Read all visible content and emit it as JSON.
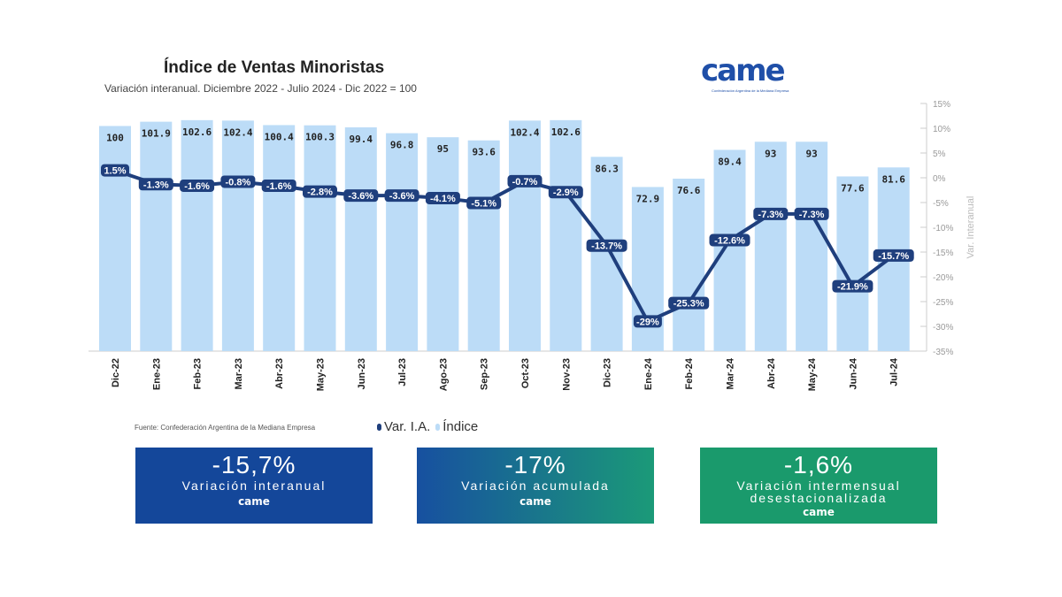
{
  "header": {
    "title": "Índice de Ventas Minoristas",
    "subtitle": "Variación interanual. Diciembre 2022 - Julio 2024 - Dic 2022 = 100",
    "logo_text": "came",
    "logo_subtext": "Confederación Argentina de la Mediana Empresa"
  },
  "chart_data": {
    "type": "bar+line",
    "title": "Índice de Ventas Minoristas",
    "categories": [
      "Dic-22",
      "Ene-23",
      "Feb-23",
      "Mar-23",
      "Abr-23",
      "May-23",
      "Jun-23",
      "Jul-23",
      "Ago-23",
      "Sep-23",
      "Oct-23",
      "Nov-23",
      "Dic-23",
      "Ene-24",
      "Feb-24",
      "Mar-24",
      "Abr-24",
      "May-24",
      "Jun-24",
      "Jul-24"
    ],
    "series": [
      {
        "name": "Índice",
        "type": "bar",
        "color": "#bcdcf7",
        "values": [
          100,
          101.9,
          102.6,
          102.4,
          100.4,
          100.3,
          99.4,
          96.8,
          95,
          93.6,
          102.4,
          102.6,
          86.3,
          72.9,
          76.6,
          89.4,
          93,
          93,
          77.6,
          81.6
        ],
        "labels": [
          "100",
          "101.9",
          "102.6",
          "102.4",
          "100.4",
          "100.3",
          "99.4",
          "96.8",
          "95",
          "93.6",
          "102.4",
          "102.6",
          "86.3",
          "72.9",
          "76.6",
          "89.4",
          "93",
          "93",
          "77.6",
          "81.6"
        ]
      },
      {
        "name": "Var. I.A.",
        "type": "line",
        "color": "#1f3f7d",
        "values": [
          1.5,
          -1.3,
          -1.6,
          -0.8,
          -1.6,
          -2.8,
          -3.6,
          -3.6,
          -4.1,
          -5.1,
          -0.7,
          -2.9,
          -13.7,
          -29,
          -25.3,
          -12.6,
          -7.3,
          -7.3,
          -21.9,
          -15.7
        ],
        "labels": [
          "1.5%",
          "-1.3%",
          "-1.6%",
          "-0.8%",
          "-1.6%",
          "-2.8%",
          "-3.6%",
          "-3.6%",
          "-4.1%",
          "-5.1%",
          "-0.7%",
          "-2.9%",
          "-13.7%",
          "-29%",
          "-25.3%",
          "-12.6%",
          "-7.3%",
          "-7.3%",
          "-21.9%",
          "-15.7%"
        ]
      }
    ],
    "y_left_range": [
      0,
      110
    ],
    "y_right": {
      "label": "Var. Interanual",
      "range": [
        -35,
        15
      ],
      "ticks": [
        "15%",
        "10%",
        "5%",
        "0%",
        "-5%",
        "-10%",
        "-15%",
        "-20%",
        "-25%",
        "-30%",
        "-35%"
      ]
    },
    "legend": {
      "position": "bottom",
      "items": [
        "Var. I.A.",
        "Índice"
      ]
    }
  },
  "footer": {
    "source": "Fuente: Confederación Argentina de la Mediana Empresa"
  },
  "cards": [
    {
      "value": "-15,7%",
      "label": "Variación interanual",
      "logo": "came"
    },
    {
      "value": "-17%",
      "label": "Variación acumulada",
      "logo": "came"
    },
    {
      "value": "-1,6%",
      "label": "Variación intermensual desestacionalizada",
      "logo": "came"
    }
  ]
}
